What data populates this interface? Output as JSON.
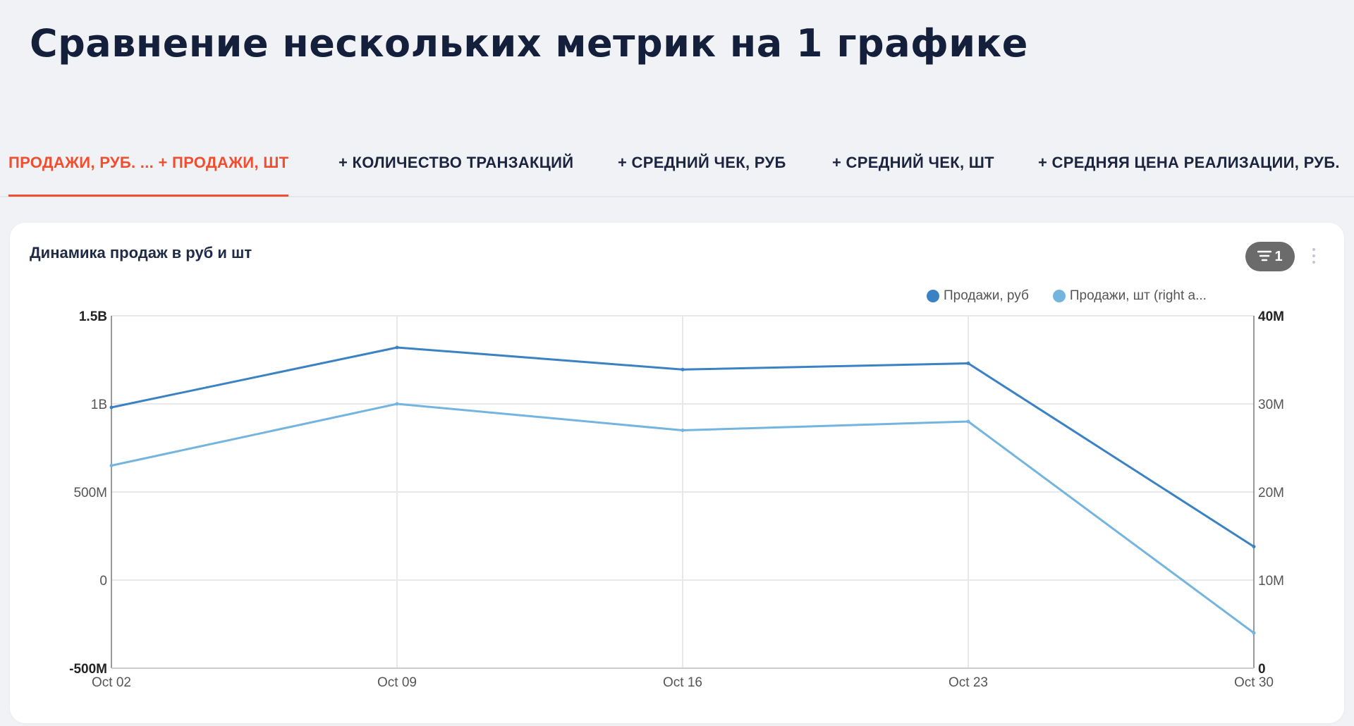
{
  "title": "Сравнение нескольких метрик на 1 графике",
  "tabs": [
    {
      "label": "ПРОДАЖИ, РУБ. ... + ПРОДАЖИ, ШТ",
      "active": true
    },
    {
      "label": "+ КОЛИЧЕСТВО ТРАНЗАКЦИЙ",
      "active": false
    },
    {
      "label": "+ СРЕДНИЙ ЧЕК, РУБ",
      "active": false
    },
    {
      "label": "+ СРЕДНИЙ ЧЕК, ШТ",
      "active": false
    },
    {
      "label": "+ СРЕДНЯЯ ЦЕНА РЕАЛИЗАЦИИ, РУБ.",
      "active": false
    }
  ],
  "card": {
    "title": "Динамика продаж в руб и шт",
    "filter_count": "1",
    "filter_icon": "filter-icon",
    "menu_icon": "kebab-menu-icon"
  },
  "colors": {
    "accent": "#f04e2f",
    "series_rub": "#3a82c4",
    "series_sht": "#74b5e0"
  },
  "chart_data": {
    "type": "line",
    "x": [
      "Oct 02",
      "Oct 09",
      "Oct 16",
      "Oct 23",
      "Oct 30"
    ],
    "x_ticks": [
      "Oct 02",
      "Oct 09",
      "Oct 16",
      "Oct 23",
      "Oct 30"
    ],
    "series": [
      {
        "name": "Продажи, руб",
        "axis": "left",
        "values": [
          980000000,
          1320000000,
          1195000000,
          1230000000,
          190000000
        ]
      },
      {
        "name": "Продажи, шт (right a...",
        "axis": "right",
        "values": [
          23000000,
          30000000,
          27000000,
          28000000,
          4000000
        ]
      }
    ],
    "y_left": {
      "ylim": [
        -500000000,
        1500000000
      ],
      "ticks": [
        {
          "v": 1500000000,
          "label": "1.5B",
          "bold": true
        },
        {
          "v": 1000000000,
          "label": "1B"
        },
        {
          "v": 500000000,
          "label": "500M"
        },
        {
          "v": 0,
          "label": "0"
        },
        {
          "v": -500000000,
          "label": "-500M",
          "bold": true
        }
      ]
    },
    "y_right": {
      "ylim": [
        0,
        40000000
      ],
      "ticks": [
        {
          "v": 40000000,
          "label": "40M",
          "bold": true
        },
        {
          "v": 30000000,
          "label": "30M"
        },
        {
          "v": 20000000,
          "label": "20M"
        },
        {
          "v": 10000000,
          "label": "10M"
        },
        {
          "v": 0,
          "label": "0",
          "bold": true
        }
      ]
    },
    "grid": true,
    "legend": "top-right"
  }
}
